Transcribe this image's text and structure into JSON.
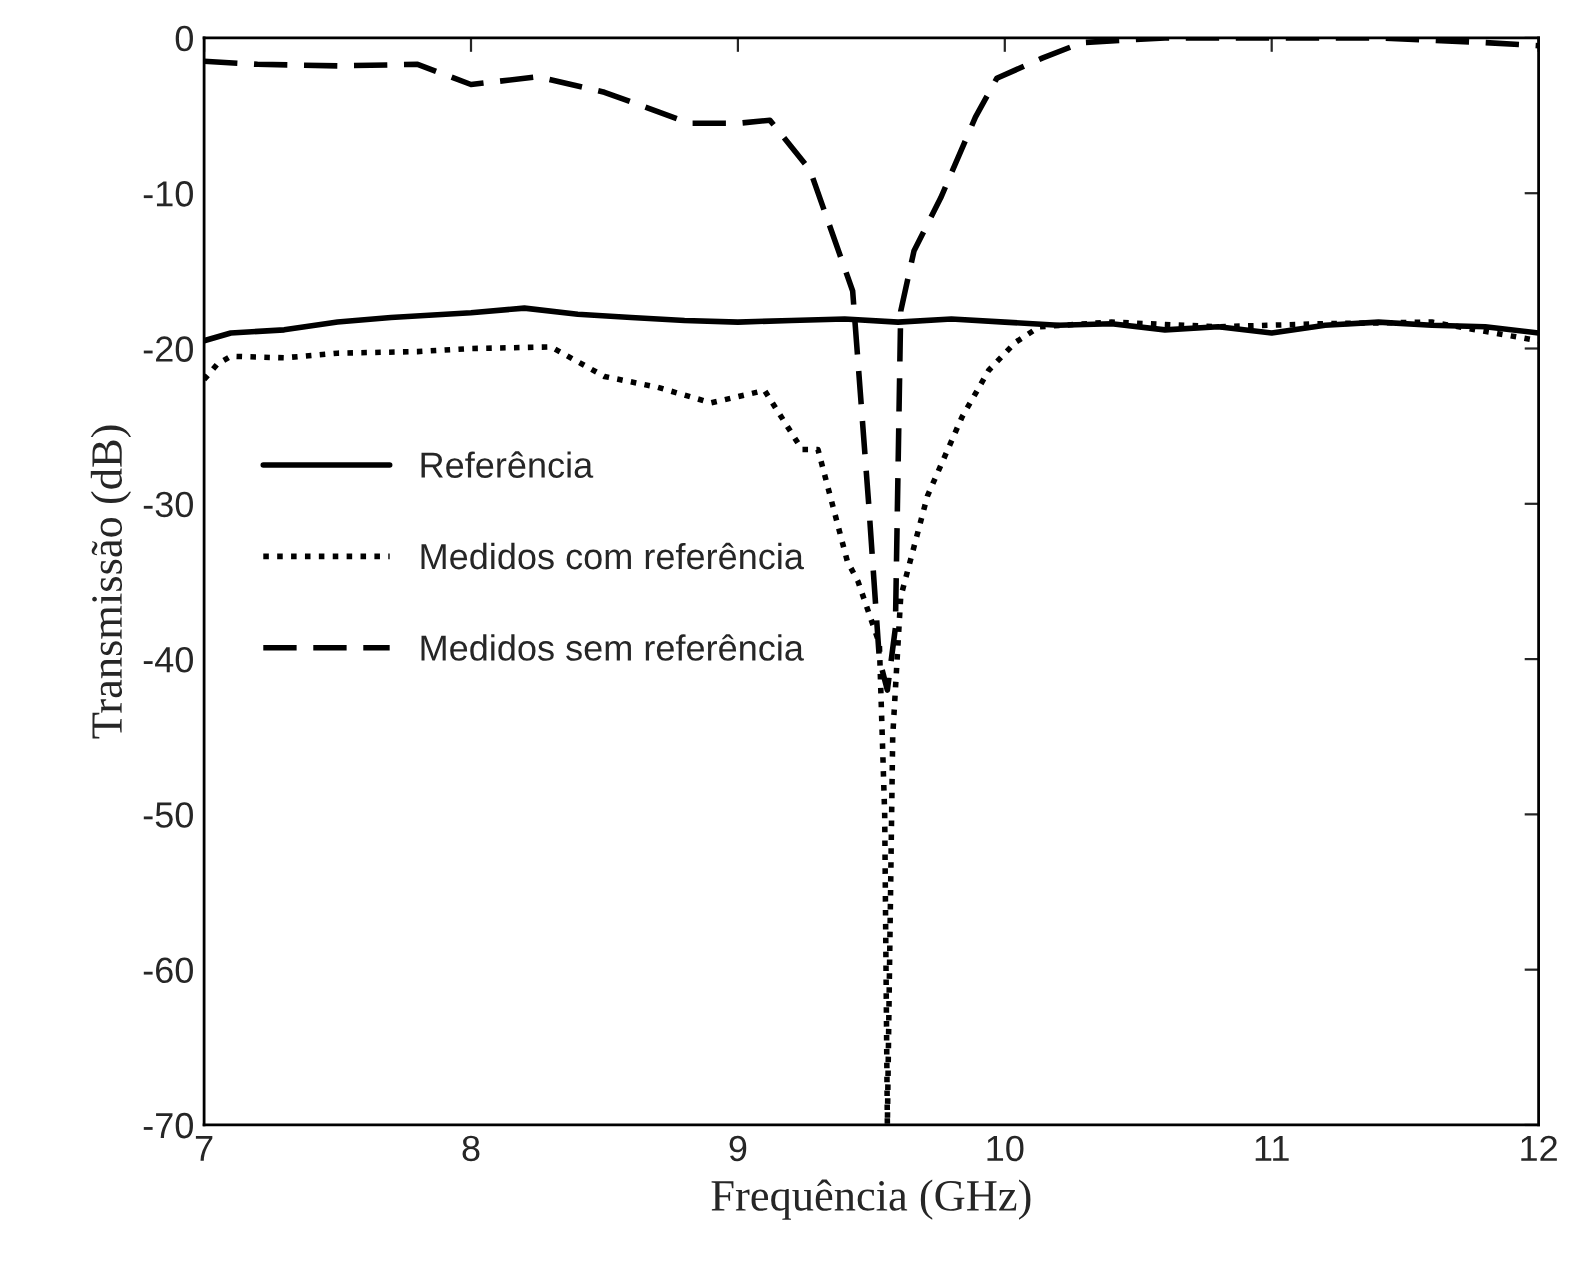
{
  "chart_data": {
    "type": "line",
    "xlabel": "Frequência (GHz)",
    "ylabel": "Transmissão (dB)",
    "xlim": [
      7,
      12
    ],
    "ylim": [
      -70,
      0
    ],
    "xticks": [
      7,
      8,
      9,
      10,
      11,
      12
    ],
    "yticks": [
      -70,
      -60,
      -50,
      -40,
      -30,
      -20,
      -10,
      0
    ],
    "grid": false,
    "legend": "center left",
    "series": [
      {
        "name": "Referência",
        "color": "#000000",
        "line_style": "solid",
        "x": [
          7,
          7.1,
          7.3,
          7.5,
          7.7,
          8.0,
          8.2,
          8.4,
          8.6,
          8.8,
          9.0,
          9.2,
          9.4,
          9.6,
          9.8,
          10.0,
          10.2,
          10.4,
          10.6,
          10.8,
          11.0,
          11.2,
          11.4,
          11.6,
          11.8,
          12
        ],
        "values": [
          -19.5,
          -19,
          -18.8,
          -18.3,
          -18,
          -17.7,
          -17.4,
          -17.8,
          -18,
          -18.2,
          -18.3,
          -18.2,
          -18.1,
          -18.3,
          -18.1,
          -18.3,
          -18.5,
          -18.4,
          -18.8,
          -18.6,
          -19,
          -18.5,
          -18.3,
          -18.5,
          -18.6,
          -19
        ]
      },
      {
        "name": "Medidos com referência",
        "color": "#000000",
        "line_style": "dotted",
        "x": [
          7,
          7.05,
          7.1,
          7.3,
          7.5,
          7.8,
          8.0,
          8.3,
          8.5,
          8.7,
          8.9,
          9.1,
          9.24,
          9.3,
          9.41,
          9.45,
          9.49,
          9.53,
          9.55,
          9.56,
          9.58,
          9.61,
          9.71,
          9.84,
          9.94,
          10.04,
          10.13,
          10.4,
          10.8,
          11.2,
          11.6,
          12
        ],
        "values": [
          -22,
          -21,
          -20.5,
          -20.6,
          -20.3,
          -20.2,
          -20,
          -19.9,
          -21.8,
          -22.5,
          -23.5,
          -22.7,
          -26.5,
          -26.5,
          -33.7,
          -35,
          -37,
          -39,
          -50,
          -70,
          -45,
          -36,
          -29.5,
          -24.4,
          -21.4,
          -19.6,
          -18.6,
          -18.3,
          -18.6,
          -18.4,
          -18.3,
          -19.5
        ]
      },
      {
        "name": "Medidos sem referência",
        "color": "#000000",
        "line_style": "dashed",
        "x": [
          7,
          7.2,
          7.5,
          7.8,
          8.0,
          8.25,
          8.5,
          8.82,
          9.0,
          9.12,
          9.27,
          9.35,
          9.43,
          9.49,
          9.53,
          9.56,
          9.59,
          9.61,
          9.66,
          9.76,
          9.89,
          9.97,
          10.14,
          10.29,
          10.6,
          11.0,
          11.4,
          11.8,
          12
        ],
        "values": [
          -1.5,
          -1.7,
          -1.8,
          -1.7,
          -3,
          -2.5,
          -3.5,
          -5.5,
          -5.5,
          -5.3,
          -8.5,
          -12.4,
          -16.3,
          -30,
          -40,
          -42,
          -38,
          -17.6,
          -13.7,
          -10.3,
          -5.1,
          -2.6,
          -1.3,
          -0.3,
          0,
          0,
          0,
          -0.3,
          -0.5
        ]
      }
    ]
  }
}
